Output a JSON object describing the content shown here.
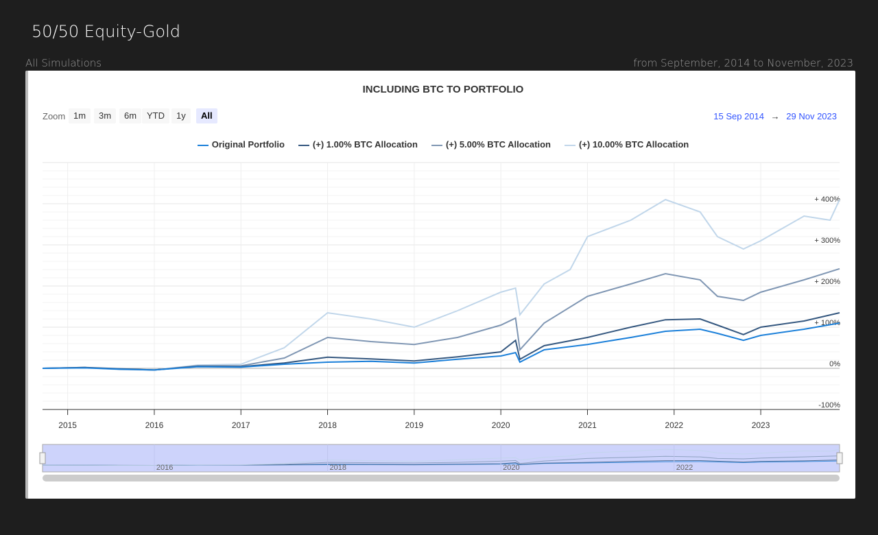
{
  "page": {
    "title": "50/50 Equity-Gold",
    "left_label": "All Simulations",
    "right_label": "from September, 2014 to November, 2023"
  },
  "zoom": {
    "label": "Zoom",
    "buttons": [
      "1m",
      "3m",
      "6m",
      "YTD",
      "1y",
      "All"
    ],
    "active": "All"
  },
  "range": {
    "from": "15 Sep 2014",
    "arrow": "→",
    "to": "29 Nov 2023"
  },
  "chart_data": {
    "type": "line",
    "title": "INCLUDING BTC TO PORTFOLIO",
    "xlim": [
      2014.71,
      2023.91
    ],
    "ylim": [
      -100,
      500
    ],
    "x_ticks": [
      "2015",
      "2016",
      "2017",
      "2018",
      "2019",
      "2020",
      "2021",
      "2022",
      "2023"
    ],
    "y_ticks": [
      "-100%",
      "0%",
      "+ 100%",
      "+ 200%",
      "+ 300%",
      "+ 400%"
    ],
    "navigator_ticks": [
      "2016",
      "2018",
      "2020",
      "2022"
    ],
    "legend_position": "top-center",
    "series": [
      {
        "name": "Original Portfolio",
        "color": "#1a7fd9",
        "points": [
          [
            2014.71,
            0
          ],
          [
            2015.2,
            1
          ],
          [
            2015.6,
            -2
          ],
          [
            2016,
            -4
          ],
          [
            2016.5,
            4
          ],
          [
            2017,
            3
          ],
          [
            2017.5,
            10
          ],
          [
            2018,
            15
          ],
          [
            2018.5,
            17
          ],
          [
            2019,
            13
          ],
          [
            2019.5,
            22
          ],
          [
            2020,
            30
          ],
          [
            2020.17,
            38
          ],
          [
            2020.22,
            15
          ],
          [
            2020.5,
            45
          ],
          [
            2021,
            58
          ],
          [
            2021.5,
            75
          ],
          [
            2021.9,
            90
          ],
          [
            2022.3,
            95
          ],
          [
            2022.5,
            85
          ],
          [
            2022.8,
            68
          ],
          [
            2023,
            80
          ],
          [
            2023.5,
            95
          ],
          [
            2023.91,
            110
          ]
        ]
      },
      {
        "name": "(+) 1.00% BTC Allocation",
        "color": "#34577f",
        "points": [
          [
            2014.71,
            0
          ],
          [
            2015.2,
            2
          ],
          [
            2015.6,
            -1
          ],
          [
            2016,
            -4
          ],
          [
            2016.5,
            5
          ],
          [
            2017,
            4
          ],
          [
            2017.5,
            13
          ],
          [
            2018,
            27
          ],
          [
            2018.5,
            23
          ],
          [
            2019,
            18
          ],
          [
            2019.5,
            28
          ],
          [
            2020,
            40
          ],
          [
            2020.17,
            68
          ],
          [
            2020.22,
            22
          ],
          [
            2020.5,
            55
          ],
          [
            2021,
            75
          ],
          [
            2021.5,
            100
          ],
          [
            2021.9,
            118
          ],
          [
            2022.3,
            120
          ],
          [
            2022.5,
            105
          ],
          [
            2022.8,
            82
          ],
          [
            2023,
            100
          ],
          [
            2023.5,
            115
          ],
          [
            2023.91,
            135
          ]
        ]
      },
      {
        "name": "(+) 5.00% BTC Allocation",
        "color": "#7f96b3",
        "points": [
          [
            2014.71,
            0
          ],
          [
            2015.2,
            2
          ],
          [
            2015.6,
            -2
          ],
          [
            2016,
            -4
          ],
          [
            2016.5,
            6
          ],
          [
            2017,
            6
          ],
          [
            2017.5,
            25
          ],
          [
            2018,
            75
          ],
          [
            2018.5,
            65
          ],
          [
            2019,
            58
          ],
          [
            2019.5,
            75
          ],
          [
            2020,
            105
          ],
          [
            2020.17,
            122
          ],
          [
            2020.22,
            45
          ],
          [
            2020.5,
            110
          ],
          [
            2021,
            175
          ],
          [
            2021.5,
            205
          ],
          [
            2021.9,
            230
          ],
          [
            2022.3,
            215
          ],
          [
            2022.5,
            175
          ],
          [
            2022.8,
            165
          ],
          [
            2023,
            185
          ],
          [
            2023.5,
            215
          ],
          [
            2023.91,
            242
          ]
        ]
      },
      {
        "name": "(+) 10.00% BTC Allocation",
        "color": "#c0d6ea",
        "points": [
          [
            2014.71,
            0
          ],
          [
            2015.2,
            2
          ],
          [
            2015.6,
            -3
          ],
          [
            2016,
            -4
          ],
          [
            2016.5,
            8
          ],
          [
            2017,
            10
          ],
          [
            2017.5,
            50
          ],
          [
            2018,
            135
          ],
          [
            2018.5,
            120
          ],
          [
            2019,
            100
          ],
          [
            2019.5,
            140
          ],
          [
            2020,
            185
          ],
          [
            2020.17,
            195
          ],
          [
            2020.22,
            130
          ],
          [
            2020.5,
            205
          ],
          [
            2020.8,
            240
          ],
          [
            2021,
            320
          ],
          [
            2021.5,
            360
          ],
          [
            2021.9,
            410
          ],
          [
            2022.3,
            380
          ],
          [
            2022.5,
            320
          ],
          [
            2022.8,
            290
          ],
          [
            2023,
            310
          ],
          [
            2023.5,
            370
          ],
          [
            2023.8,
            360
          ],
          [
            2023.91,
            410
          ]
        ]
      }
    ]
  }
}
